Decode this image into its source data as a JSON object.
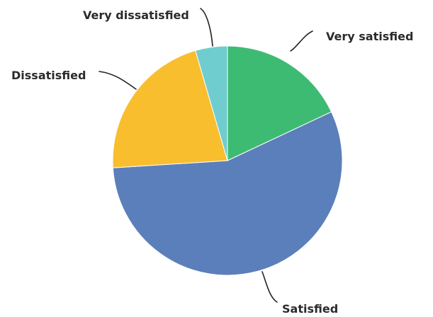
{
  "chart_data": {
    "type": "pie",
    "title": "",
    "start_angle_deg": 0,
    "direction": "clockwise",
    "legend": "none",
    "slices": [
      {
        "label": "Very satisfied",
        "value": 18,
        "color": "#3DBB73"
      },
      {
        "label": "Satisfied",
        "value": 56,
        "color": "#5B7FBA"
      },
      {
        "label": "Dissatisfied",
        "value": 21.5,
        "color": "#F8BE2E"
      },
      {
        "label": "Very dissatisfied",
        "value": 4.5,
        "color": "#6FCCCF"
      }
    ]
  }
}
